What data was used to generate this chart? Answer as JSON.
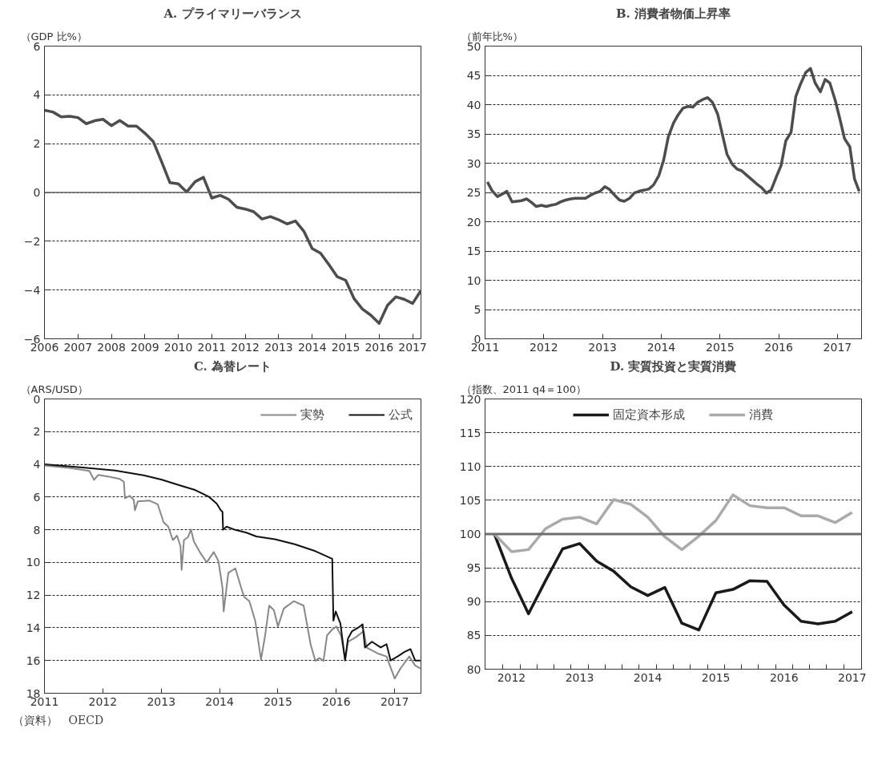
{
  "chart_data": [
    {
      "type": "line",
      "title": "A. プライマリーバランス",
      "ylabel": "（GDP 比%）",
      "x": [
        2006.0,
        2006.25,
        2006.5,
        2006.75,
        2007.0,
        2007.25,
        2007.5,
        2007.75,
        2008.0,
        2008.25,
        2008.5,
        2008.75,
        2009.0,
        2009.25,
        2009.5,
        2009.75,
        2010.0,
        2010.25,
        2010.5,
        2010.75,
        2011.0,
        2011.25,
        2011.5,
        2011.75,
        2012.0,
        2012.25,
        2012.5,
        2012.75,
        2013.0,
        2013.25,
        2013.5,
        2013.75,
        2014.0,
        2014.25,
        2014.5,
        2014.75,
        2015.0,
        2015.25,
        2015.5,
        2015.75,
        2016.0,
        2016.25,
        2016.5,
        2016.75,
        2017.0,
        2017.25
      ],
      "series": [
        {
          "color": "#4d4d4d",
          "values": [
            3.37,
            3.3,
            3.1,
            3.12,
            3.07,
            2.82,
            2.94,
            3.0,
            2.74,
            2.95,
            2.72,
            2.72,
            2.43,
            2.09,
            1.26,
            0.4,
            0.35,
            0.02,
            0.44,
            0.62,
            -0.23,
            -0.12,
            -0.28,
            -0.61,
            -0.68,
            -0.79,
            -1.09,
            -0.99,
            -1.12,
            -1.29,
            -1.17,
            -1.59,
            -2.3,
            -2.49,
            -2.96,
            -3.46,
            -3.6,
            -4.35,
            -4.78,
            -5.03,
            -5.37,
            -4.63,
            -4.28,
            -4.38,
            -4.55,
            -4.02
          ]
        }
      ],
      "xlim": [
        2006,
        2017.25
      ],
      "xticks": [
        2006,
        2007,
        2008,
        2009,
        2010,
        2011,
        2012,
        2013,
        2014,
        2015,
        2016,
        2017
      ],
      "ylim": [
        -6,
        6
      ],
      "yticks": [
        {
          "value": -6,
          "label": "−6"
        },
        {
          "value": -4,
          "label": "−4"
        },
        {
          "value": -2,
          "label": "−2"
        },
        0,
        2,
        4,
        6
      ],
      "ref_lines": [
        {
          "axis": "y",
          "value": 0,
          "color": "#666666",
          "line_style": "solid"
        }
      ],
      "grid": "y",
      "legend": false,
      "marker": "none",
      "line_style": "solid"
    },
    {
      "type": "line",
      "title": "B. 消費者物価上昇率",
      "ylabel": "（前年比%）",
      "x": [
        2011.04,
        2011.12,
        2011.21,
        2011.29,
        2011.37,
        2011.46,
        2011.54,
        2011.62,
        2011.71,
        2011.79,
        2011.87,
        2011.96,
        2012.04,
        2012.12,
        2012.21,
        2012.29,
        2012.37,
        2012.46,
        2012.54,
        2012.62,
        2012.71,
        2012.79,
        2012.87,
        2012.96,
        2013.04,
        2013.12,
        2013.21,
        2013.29,
        2013.37,
        2013.46,
        2013.54,
        2013.62,
        2013.71,
        2013.79,
        2013.87,
        2013.96,
        2014.04,
        2014.12,
        2014.21,
        2014.29,
        2014.37,
        2014.46,
        2014.54,
        2014.62,
        2014.71,
        2014.79,
        2014.87,
        2014.96,
        2015.04,
        2015.12,
        2015.21,
        2015.29,
        2015.37,
        2015.46,
        2015.54,
        2015.62,
        2015.71,
        2015.79,
        2015.87,
        2015.96,
        2016.04,
        2016.12,
        2016.21,
        2016.29,
        2016.37,
        2016.46,
        2016.54,
        2016.62,
        2016.71,
        2016.79,
        2016.87,
        2016.96,
        2017.04,
        2017.12,
        2017.21,
        2017.29,
        2017.37
      ],
      "series": [
        {
          "color": "#4d4d4d",
          "values": [
            26.8,
            25.3,
            24.3,
            24.7,
            25.2,
            23.4,
            23.5,
            23.6,
            23.9,
            23.3,
            22.6,
            22.8,
            22.6,
            22.8,
            23.0,
            23.4,
            23.7,
            23.9,
            24.0,
            24.0,
            24.0,
            24.5,
            24.9,
            25.2,
            26.0,
            25.5,
            24.5,
            23.7,
            23.5,
            24.0,
            24.9,
            25.2,
            25.4,
            25.6,
            26.3,
            27.9,
            30.5,
            34.5,
            36.9,
            38.3,
            39.4,
            39.7,
            39.6,
            40.4,
            40.9,
            41.2,
            40.4,
            38.4,
            34.9,
            31.5,
            29.8,
            29.0,
            28.7,
            27.9,
            27.2,
            26.5,
            25.8,
            24.9,
            25.4,
            27.7,
            29.6,
            33.8,
            35.3,
            41.4,
            43.5,
            45.5,
            46.2,
            43.7,
            42.2,
            44.3,
            43.7,
            40.8,
            37.6,
            34.2,
            32.8,
            27.3,
            25.2
          ]
        }
      ],
      "xlim": [
        2011,
        2017.41
      ],
      "xticks": [
        2011,
        2012,
        2013,
        2014,
        2015,
        2016,
        2017
      ],
      "ylim": [
        0,
        50
      ],
      "yticks": [
        0,
        5,
        10,
        15,
        20,
        25,
        30,
        35,
        40,
        45,
        50
      ],
      "grid": "y",
      "legend": false,
      "marker": "none",
      "line_style": "solid"
    },
    {
      "type": "line",
      "title": "C. 為替レート",
      "ylabel": "（ARS/USD）",
      "series": [
        {
          "name": "実勢",
          "color": "#888888",
          "x": [
            2011.0,
            2011.38,
            2011.77,
            2011.85,
            2011.92,
            2012.11,
            2012.29,
            2012.36,
            2012.38,
            2012.46,
            2012.53,
            2012.55,
            2012.6,
            2012.8,
            2012.94,
            2013.04,
            2013.12,
            2013.2,
            2013.27,
            2013.33,
            2013.35,
            2013.39,
            2013.46,
            2013.51,
            2013.56,
            2013.66,
            2013.78,
            2013.9,
            2013.98,
            2014.05,
            2014.07,
            2014.15,
            2014.27,
            2014.37,
            2014.42,
            2014.51,
            2014.61,
            2014.71,
            2014.78,
            2014.85,
            2014.93,
            2015.0,
            2015.1,
            2015.27,
            2015.44,
            2015.56,
            2015.64,
            2015.71,
            2015.78,
            2015.84,
            2015.93,
            2016.0,
            2016.08,
            2016.15,
            2016.2,
            2016.34,
            2016.47,
            2016.52,
            2016.71,
            2016.86,
            2017.0,
            2017.1,
            2017.25,
            2017.35,
            2017.44
          ],
          "values": [
            4.07,
            4.2,
            4.4,
            4.95,
            4.65,
            4.76,
            4.89,
            5.07,
            6.08,
            5.93,
            6.17,
            6.81,
            6.26,
            6.22,
            6.44,
            7.54,
            7.81,
            8.63,
            8.36,
            9.0,
            10.46,
            8.63,
            8.45,
            7.99,
            8.72,
            9.36,
            10.0,
            9.36,
            9.91,
            11.55,
            13.0,
            10.64,
            10.36,
            11.55,
            12.1,
            12.37,
            13.56,
            15.93,
            14.47,
            12.64,
            12.91,
            13.92,
            12.82,
            12.37,
            12.64,
            15.02,
            16.02,
            15.84,
            16.02,
            14.47,
            14.1,
            13.92,
            14.47,
            15.93,
            14.85,
            14.56,
            14.2,
            15.21,
            15.57,
            15.75,
            17.1,
            16.48,
            15.75,
            16.3,
            16.48
          ]
        },
        {
          "name": "公式",
          "color": "#111111",
          "x": [
            2011.0,
            2011.69,
            2012.21,
            2012.7,
            2013.0,
            2013.34,
            2013.58,
            2013.82,
            2013.95,
            2014.02,
            2014.05,
            2014.06,
            2014.12,
            2014.27,
            2014.46,
            2014.63,
            2014.95,
            2015.29,
            2015.64,
            2015.93,
            2015.95,
            2015.99,
            2016.07,
            2016.15,
            2016.2,
            2016.27,
            2016.37,
            2016.45,
            2016.49,
            2016.61,
            2016.76,
            2016.86,
            2016.93,
            2017.05,
            2017.17,
            2017.27,
            2017.35,
            2017.44
          ],
          "values": [
            4.0,
            4.2,
            4.38,
            4.67,
            4.93,
            5.31,
            5.57,
            5.99,
            6.4,
            6.81,
            6.9,
            8.0,
            7.81,
            8.01,
            8.18,
            8.41,
            8.58,
            8.89,
            9.31,
            9.78,
            13.56,
            13.0,
            13.74,
            16.0,
            14.65,
            14.2,
            14.0,
            13.78,
            15.2,
            14.85,
            15.2,
            15.0,
            16.0,
            15.75,
            15.47,
            15.3,
            16.0,
            16.0
          ]
        }
      ],
      "xlim": [
        2011,
        2017.45
      ],
      "xticks": [
        2011,
        2012,
        2013,
        2014,
        2015,
        2016,
        2017
      ],
      "ylim": [
        18,
        0
      ],
      "yticks": [
        0,
        2,
        4,
        6,
        8,
        10,
        12,
        14,
        16,
        18
      ],
      "annotations": [
        "（資料）　OECD"
      ],
      "grid": "y",
      "legend": "top right",
      "marker": "none",
      "line_style": "solid"
    },
    {
      "type": "line",
      "title": "D. 実質投資と実質消費",
      "ylabel": "（指数、2011 q4＝100）",
      "categories": [
        null,
        "2012",
        null,
        null,
        null,
        "2013",
        null,
        null,
        null,
        "2014",
        null,
        null,
        null,
        "2015",
        null,
        null,
        null,
        "2016",
        null,
        null,
        null,
        "2017"
      ],
      "series": [
        {
          "name": "固定資本形成",
          "color": "#1a1a1a",
          "values": [
            100,
            93.5,
            88.2,
            93.1,
            97.8,
            98.6,
            96.0,
            94.5,
            92.2,
            90.9,
            92.1,
            86.8,
            85.8,
            91.3,
            91.8,
            93.1,
            93.0,
            89.5,
            87.1,
            86.7,
            87.1,
            88.5
          ]
        },
        {
          "name": "消費",
          "color": "#aaaaaa",
          "values": [
            100,
            97.4,
            97.7,
            100.8,
            102.2,
            102.5,
            101.5,
            105.1,
            104.4,
            102.5,
            99.6,
            97.7,
            99.7,
            102.0,
            105.8,
            104.2,
            103.9,
            103.9,
            102.7,
            102.7,
            101.7,
            103.2
          ]
        }
      ],
      "ylim": [
        80,
        120
      ],
      "yticks": [
        80,
        85,
        90,
        95,
        100,
        105,
        110,
        115,
        120
      ],
      "ref_lines": [
        {
          "axis": "y",
          "value": 100,
          "color": "#6e6e6e",
          "line_style": "solid"
        }
      ],
      "grid": "y",
      "legend": "top",
      "marker": "none",
      "line_style": "solid"
    }
  ]
}
